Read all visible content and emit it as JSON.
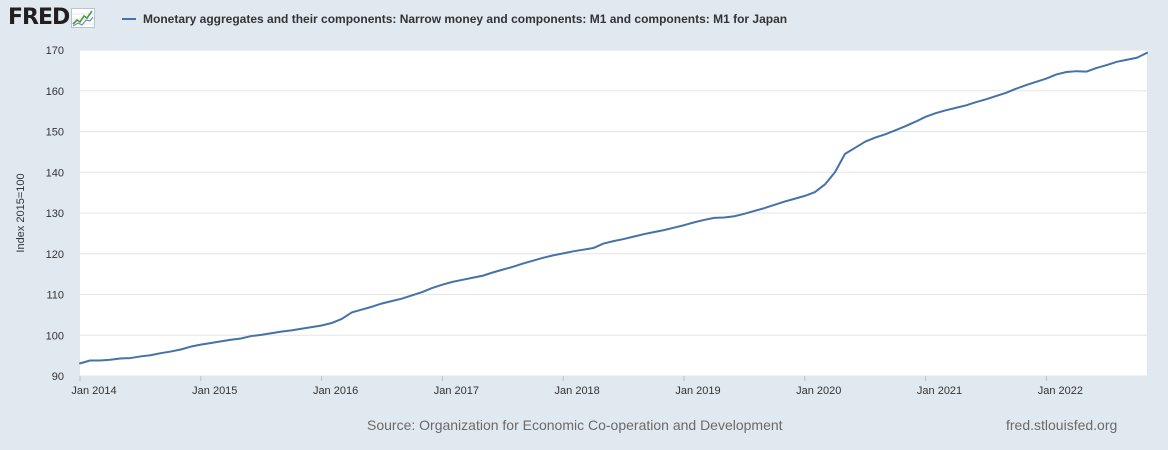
{
  "brand": {
    "logo_text": "FRED"
  },
  "legend": {
    "label": "Monetary aggregates and their components: Narrow money and components: M1 and components: M1 for Japan",
    "color": "#4572a7"
  },
  "footer": {
    "source": "Source: Organization for Economic Co-operation and Development",
    "url": "fred.stlouisfed.org"
  },
  "chart_data": {
    "type": "line",
    "title": "",
    "xlabel": "",
    "ylabel": "Index 2015=100",
    "ylim": [
      90,
      170
    ],
    "yticks": [
      90,
      100,
      110,
      120,
      130,
      140,
      150,
      160,
      170
    ],
    "xticks": [
      "Jan 2014",
      "Jan 2015",
      "Jan 2016",
      "Jan 2017",
      "Jan 2018",
      "Jan 2019",
      "Jan 2020",
      "Jan 2021",
      "Jan 2022"
    ],
    "grid": true,
    "x_start": "2014-01",
    "x_end": "2022-11",
    "series": [
      {
        "name": "Monetary aggregates and their components: Narrow money and components: M1 and components: M1 for Japan",
        "color": "#4572a7",
        "x": [
          "2014-01",
          "2014-02",
          "2014-03",
          "2014-04",
          "2014-05",
          "2014-06",
          "2014-07",
          "2014-08",
          "2014-09",
          "2014-10",
          "2014-11",
          "2014-12",
          "2015-01",
          "2015-02",
          "2015-03",
          "2015-04",
          "2015-05",
          "2015-06",
          "2015-07",
          "2015-08",
          "2015-09",
          "2015-10",
          "2015-11",
          "2015-12",
          "2016-01",
          "2016-02",
          "2016-03",
          "2016-04",
          "2016-05",
          "2016-06",
          "2016-07",
          "2016-08",
          "2016-09",
          "2016-10",
          "2016-11",
          "2016-12",
          "2017-01",
          "2017-02",
          "2017-03",
          "2017-04",
          "2017-05",
          "2017-06",
          "2017-07",
          "2017-08",
          "2017-09",
          "2017-10",
          "2017-11",
          "2017-12",
          "2018-01",
          "2018-02",
          "2018-03",
          "2018-04",
          "2018-05",
          "2018-06",
          "2018-07",
          "2018-08",
          "2018-09",
          "2018-10",
          "2018-11",
          "2018-12",
          "2019-01",
          "2019-02",
          "2019-03",
          "2019-04",
          "2019-05",
          "2019-06",
          "2019-07",
          "2019-08",
          "2019-09",
          "2019-10",
          "2019-11",
          "2019-12",
          "2020-01",
          "2020-02",
          "2020-03",
          "2020-04",
          "2020-05",
          "2020-06",
          "2020-07",
          "2020-08",
          "2020-09",
          "2020-10",
          "2020-11",
          "2020-12",
          "2021-01",
          "2021-02",
          "2021-03",
          "2021-04",
          "2021-05",
          "2021-06",
          "2021-07",
          "2021-08",
          "2021-09",
          "2021-10",
          "2021-11",
          "2021-12",
          "2022-01",
          "2022-02",
          "2022-03",
          "2022-04",
          "2022-05",
          "2022-06",
          "2022-07",
          "2022-08",
          "2022-09",
          "2022-10",
          "2022-11"
        ],
        "values": [
          93.1,
          93.8,
          93.8,
          94.0,
          94.3,
          94.4,
          94.8,
          95.1,
          95.6,
          96.0,
          96.5,
          97.2,
          97.7,
          98.1,
          98.5,
          98.9,
          99.2,
          99.8,
          100.1,
          100.5,
          100.9,
          101.2,
          101.6,
          102.0,
          102.4,
          103.0,
          104.0,
          105.6,
          106.3,
          107.0,
          107.8,
          108.4,
          109.0,
          109.8,
          110.6,
          111.6,
          112.4,
          113.1,
          113.6,
          114.1,
          114.6,
          115.4,
          116.1,
          116.8,
          117.6,
          118.3,
          119.0,
          119.6,
          120.1,
          120.6,
          121.0,
          121.4,
          122.5,
          123.1,
          123.6,
          124.2,
          124.8,
          125.3,
          125.8,
          126.4,
          127.0,
          127.7,
          128.3,
          128.8,
          128.9,
          129.2,
          129.8,
          130.5,
          131.2,
          132.0,
          132.8,
          133.5,
          134.2,
          135.1,
          137.0,
          140.0,
          144.5,
          146.0,
          147.5,
          148.5,
          149.3,
          150.3,
          151.3,
          152.4,
          153.6,
          154.5,
          155.2,
          155.8,
          156.4,
          157.2,
          157.9,
          158.7,
          159.5,
          160.5,
          161.4,
          162.2,
          163.0,
          164.0,
          164.6,
          164.8,
          164.7,
          165.6,
          166.3,
          167.1,
          167.6,
          168.1,
          169.3
        ]
      }
    ]
  }
}
